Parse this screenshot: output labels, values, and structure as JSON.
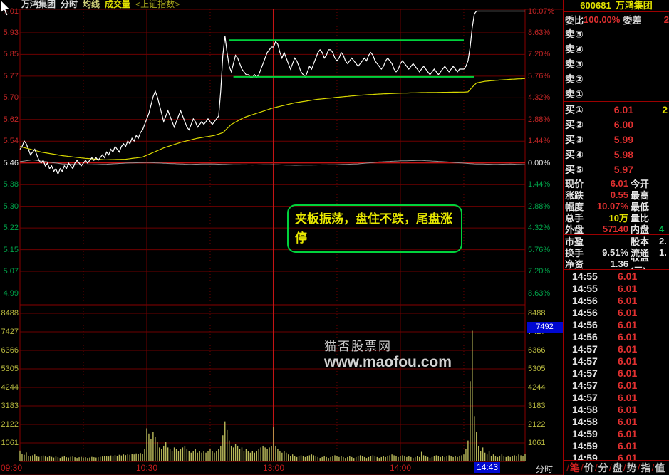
{
  "header": {
    "stock_name": "万鸿集团",
    "view_label": "分时",
    "ma_label": "均线",
    "vol_label": "成交量",
    "index_ref": "<上证指数>"
  },
  "watermark": {
    "line1": "猫否股票网",
    "line2": "www.maofou.com"
  },
  "annotation_text": "夹板振荡，盘住不跌，尾盘涨停",
  "cursor_readout": {
    "volume": "7492",
    "time": "14:43"
  },
  "axis_mode_label": "分时",
  "colors": {
    "up_red": "#e03030",
    "yellow": "#e0e000",
    "green_line": "#00d23c",
    "axis_red": "#c22525",
    "axis_green": "#00a44a",
    "grid_dark": "#6e0000",
    "grid_bright": "#c41414",
    "blue_highlight": "#0008d0",
    "price_line": "#ffffff",
    "avg_line": "#d8d800",
    "index_line": "#909090",
    "vol_bar": "#b9b95a"
  },
  "panel": {
    "code": "600681",
    "name": "万鸿集团",
    "weibi_label": "委比",
    "weibi_value": "100.00%",
    "weicha_label": "委差",
    "weicha_value": "2",
    "sell_levels": [
      {
        "label": "卖⑤",
        "price": "",
        "vol": ""
      },
      {
        "label": "卖④",
        "price": "",
        "vol": ""
      },
      {
        "label": "卖③",
        "price": "",
        "vol": ""
      },
      {
        "label": "卖②",
        "price": "",
        "vol": ""
      },
      {
        "label": "卖①",
        "price": "",
        "vol": ""
      }
    ],
    "buy_levels": [
      {
        "label": "买①",
        "price": "6.01",
        "vol": "2"
      },
      {
        "label": "买②",
        "price": "6.00",
        "vol": ""
      },
      {
        "label": "买③",
        "price": "5.99",
        "vol": ""
      },
      {
        "label": "买④",
        "price": "5.98",
        "vol": ""
      },
      {
        "label": "买⑤",
        "price": "5.97",
        "vol": ""
      }
    ],
    "info_rows": [
      {
        "l1": "现价",
        "v1": "6.01",
        "c1": "c-red",
        "l2": "今开",
        "v2": "",
        "c2": "c-white"
      },
      {
        "l1": "涨跌",
        "v1": "0.55",
        "c1": "c-red",
        "l2": "最高",
        "v2": "",
        "c2": "c-white"
      },
      {
        "l1": "幅度",
        "v1": "10.07%",
        "c1": "c-red",
        "l2": "最低",
        "v2": "",
        "c2": "c-white"
      },
      {
        "l1": "总手",
        "v1": "10万",
        "c1": "c-yellow",
        "l2": "量比",
        "v2": "",
        "c2": "c-white"
      },
      {
        "l1": "外盘",
        "v1": "57140",
        "c1": "c-red",
        "l2": "内盘",
        "v2": "4",
        "c2": "c-green"
      }
    ],
    "info_rows2": [
      {
        "l1": "市盈",
        "v1": "",
        "c1": "c-white",
        "l2": "股本",
        "v2": "2.",
        "c2": "c-white"
      },
      {
        "l1": "换手",
        "v1": "9.51%",
        "c1": "c-white",
        "l2": "流通",
        "v2": "1.",
        "c2": "c-white"
      },
      {
        "l1": "净资",
        "v1": "1.36",
        "c1": "c-white",
        "l2": "收益(三)",
        "v2": "",
        "c2": "c-white"
      }
    ],
    "ticks": [
      {
        "time": "14:55",
        "price": "6.01"
      },
      {
        "time": "14:55",
        "price": "6.01"
      },
      {
        "time": "14:56",
        "price": "6.01"
      },
      {
        "time": "14:56",
        "price": "6.01"
      },
      {
        "time": "14:56",
        "price": "6.01"
      },
      {
        "time": "14:56",
        "price": "6.01"
      },
      {
        "time": "14:57",
        "price": "6.01"
      },
      {
        "time": "14:57",
        "price": "6.01"
      },
      {
        "time": "14:57",
        "price": "6.01"
      },
      {
        "time": "14:57",
        "price": "6.01"
      },
      {
        "time": "14:57",
        "price": "6.01"
      },
      {
        "time": "14:58",
        "price": "6.01"
      },
      {
        "time": "14:58",
        "price": "6.01"
      },
      {
        "time": "14:59",
        "price": "6.01"
      },
      {
        "time": "14:59",
        "price": "6.01"
      },
      {
        "time": "14:59",
        "price": "6.01"
      }
    ],
    "tabs": [
      "笔",
      "价",
      "分",
      "盘",
      "势",
      "指",
      "值"
    ],
    "active_tab": "笔"
  },
  "chart_data": {
    "type": "line",
    "title": "万鸿集团(600681) 分时走势",
    "prev_close": 5.46,
    "limit_up": 6.01,
    "price_axis": [
      "6.01",
      "5.93",
      "5.85",
      "5.77",
      "5.70",
      "5.62",
      "5.54",
      "5.46",
      "5.38",
      "5.30",
      "5.22",
      "5.15",
      "5.07",
      "4.99"
    ],
    "pct_axis": [
      "10.07%",
      "8.63%",
      "7.20%",
      "5.76%",
      "4.32%",
      "2.88%",
      "1.44%",
      "0.00%",
      "1.44%",
      "2.88%",
      "4.32%",
      "5.76%",
      "7.20%",
      "8.63%"
    ],
    "vol_axis": [
      "8488",
      "7427",
      "6366",
      "5305",
      "4244",
      "3183",
      "2122",
      "1061"
    ],
    "time_labels": [
      {
        "t": "09:30",
        "min": 0,
        "align": "left"
      },
      {
        "t": "10:30",
        "min": 60,
        "align": "center"
      },
      {
        "t": "13:00",
        "min": 120,
        "align": "center"
      },
      {
        "t": "14:00",
        "min": 180,
        "align": "center"
      }
    ],
    "grid": {
      "dotted_min": [
        30,
        90,
        150,
        210
      ],
      "solid_min": [
        60,
        180
      ],
      "session_min": 120
    },
    "series": [
      {
        "name": "price",
        "values": [
          5.51,
          5.52,
          5.54,
          5.53,
          5.51,
          5.49,
          5.5,
          5.51,
          5.49,
          5.47,
          5.46,
          5.47,
          5.45,
          5.46,
          5.44,
          5.45,
          5.43,
          5.44,
          5.42,
          5.44,
          5.43,
          5.45,
          5.44,
          5.46,
          5.45,
          5.44,
          5.46,
          5.47,
          5.46,
          5.45,
          5.46,
          5.47,
          5.46,
          5.47,
          5.48,
          5.47,
          5.48,
          5.47,
          5.48,
          5.49,
          5.48,
          5.5,
          5.49,
          5.51,
          5.5,
          5.52,
          5.51,
          5.5,
          5.52,
          5.53,
          5.52,
          5.54,
          5.53,
          5.55,
          5.54,
          5.56,
          5.55,
          5.57,
          5.58,
          5.6,
          5.62,
          5.64,
          5.67,
          5.7,
          5.72,
          5.7,
          5.67,
          5.64,
          5.61,
          5.63,
          5.65,
          5.63,
          5.61,
          5.59,
          5.61,
          5.63,
          5.65,
          5.63,
          5.61,
          5.59,
          5.58,
          5.6,
          5.62,
          5.61,
          5.59,
          5.6,
          5.61,
          5.6,
          5.61,
          5.62,
          5.61,
          5.6,
          5.61,
          5.62,
          5.63,
          5.72,
          5.85,
          5.92,
          5.86,
          5.81,
          5.79,
          5.82,
          5.85,
          5.84,
          5.82,
          5.8,
          5.79,
          5.78,
          5.78,
          5.77,
          5.77,
          5.78,
          5.77,
          5.78,
          5.8,
          5.82,
          5.84,
          5.86,
          5.87,
          5.88,
          5.88,
          5.9,
          5.89,
          5.86,
          5.84,
          5.86,
          5.84,
          5.82,
          5.8,
          5.82,
          5.84,
          5.83,
          5.81,
          5.79,
          5.78,
          5.77,
          5.79,
          5.81,
          5.8,
          5.82,
          5.84,
          5.86,
          5.87,
          5.86,
          5.84,
          5.85,
          5.87,
          5.87,
          5.86,
          5.84,
          5.83,
          5.84,
          5.86,
          5.85,
          5.83,
          5.82,
          5.83,
          5.84,
          5.83,
          5.82,
          5.81,
          5.82,
          5.83,
          5.84,
          5.83,
          5.85,
          5.86,
          5.85,
          5.83,
          5.82,
          5.81,
          5.8,
          5.81,
          5.83,
          5.84,
          5.83,
          5.82,
          5.8,
          5.79,
          5.8,
          5.82,
          5.83,
          5.82,
          5.81,
          5.8,
          5.81,
          5.82,
          5.81,
          5.8,
          5.79,
          5.8,
          5.81,
          5.8,
          5.79,
          5.78,
          5.79,
          5.8,
          5.79,
          5.78,
          5.79,
          5.8,
          5.81,
          5.8,
          5.79,
          5.8,
          5.81,
          5.8,
          5.79,
          5.8,
          5.8,
          5.8,
          5.81,
          5.83,
          5.88,
          5.95,
          6.0,
          6.01,
          6.01,
          6.01,
          6.01,
          6.01,
          6.01,
          6.01,
          6.01,
          6.01,
          6.01,
          6.01,
          6.01,
          6.01,
          6.01,
          6.01,
          6.01,
          6.01,
          6.01,
          6.01,
          6.01,
          6.01,
          6.01,
          6.01,
          6.01
        ]
      },
      {
        "name": "average",
        "control_points": [
          [
            0,
            5.52
          ],
          [
            10,
            5.5
          ],
          [
            20,
            5.487
          ],
          [
            30,
            5.478
          ],
          [
            40,
            5.472
          ],
          [
            50,
            5.474
          ],
          [
            58,
            5.482
          ],
          [
            62,
            5.495
          ],
          [
            68,
            5.515
          ],
          [
            76,
            5.535
          ],
          [
            84,
            5.55
          ],
          [
            92,
            5.56
          ],
          [
            96,
            5.57
          ],
          [
            100,
            5.6
          ],
          [
            106,
            5.625
          ],
          [
            112,
            5.64
          ],
          [
            119,
            5.658
          ],
          [
            120,
            5.66
          ],
          [
            130,
            5.678
          ],
          [
            140,
            5.69
          ],
          [
            150,
            5.698
          ],
          [
            160,
            5.705
          ],
          [
            170,
            5.71
          ],
          [
            180,
            5.713
          ],
          [
            190,
            5.715
          ],
          [
            200,
            5.716
          ],
          [
            210,
            5.717
          ],
          [
            212,
            5.718
          ],
          [
            214,
            5.735
          ],
          [
            216,
            5.75
          ],
          [
            220,
            5.756
          ],
          [
            226,
            5.76
          ],
          [
            232,
            5.763
          ],
          [
            239,
            5.766
          ]
        ]
      },
      {
        "name": "index_pct",
        "control_points": [
          [
            0,
            0.1
          ],
          [
            6,
            0.22
          ],
          [
            12,
            0.1
          ],
          [
            20,
            -0.05
          ],
          [
            30,
            -0.12
          ],
          [
            40,
            -0.08
          ],
          [
            50,
            0.0
          ],
          [
            60,
            0.05
          ],
          [
            70,
            -0.02
          ],
          [
            80,
            -0.08
          ],
          [
            90,
            -0.05
          ],
          [
            100,
            -0.1
          ],
          [
            110,
            -0.12
          ],
          [
            119,
            -0.1
          ],
          [
            120,
            -0.1
          ],
          [
            130,
            -0.14
          ],
          [
            140,
            -0.12
          ],
          [
            150,
            -0.1
          ],
          [
            160,
            -0.05
          ],
          [
            170,
            0.08
          ],
          [
            180,
            0.15
          ],
          [
            190,
            0.18
          ],
          [
            200,
            0.1
          ],
          [
            210,
            0.0
          ],
          [
            215,
            -0.05
          ],
          [
            225,
            -0.08
          ],
          [
            232,
            -0.06
          ],
          [
            239,
            -0.1
          ]
        ]
      }
    ],
    "volume": [
      620,
      450,
      380,
      520,
      300,
      280,
      350,
      400,
      320,
      260,
      300,
      340,
      280,
      240,
      300,
      260,
      220,
      280,
      240,
      200,
      260,
      300,
      240,
      220,
      260,
      280,
      240,
      200,
      240,
      260,
      220,
      240,
      200,
      220,
      260,
      240,
      220,
      240,
      260,
      280,
      300,
      320,
      280,
      340,
      300,
      360,
      320,
      380,
      340,
      400,
      360,
      420,
      380,
      440,
      400,
      460,
      420,
      480,
      440,
      700,
      1900,
      1600,
      1300,
      1700,
      1400,
      1100,
      800,
      700,
      900,
      1100,
      800,
      700,
      600,
      800,
      700,
      600,
      700,
      800,
      900,
      700,
      600,
      500,
      600,
      700,
      500,
      600,
      500,
      600,
      500,
      600,
      700,
      600,
      500,
      600,
      700,
      900,
      1500,
      2300,
      1800,
      1200,
      900,
      800,
      1000,
      900,
      700,
      800,
      600,
      700,
      600,
      500,
      600,
      500,
      600,
      700,
      800,
      900,
      800,
      700,
      800,
      900,
      2000,
      900,
      700,
      600,
      500,
      600,
      500,
      400,
      300,
      400,
      300,
      250,
      300,
      350,
      300,
      250,
      300,
      350,
      400,
      350,
      300,
      250,
      200,
      250,
      300,
      250,
      200,
      250,
      300,
      350,
      300,
      250,
      300,
      250,
      200,
      250,
      300,
      250,
      200,
      250,
      300,
      350,
      300,
      250,
      200,
      250,
      300,
      350,
      300,
      250,
      200,
      250,
      300,
      250,
      300,
      350,
      400,
      350,
      300,
      250,
      300,
      350,
      300,
      250,
      300,
      250,
      200,
      250,
      300,
      250,
      550,
      350,
      300,
      250,
      200,
      250,
      300,
      350,
      300,
      250,
      300,
      250,
      300,
      350,
      300,
      250,
      300,
      250,
      300,
      350,
      400,
      700,
      1200,
      4600,
      7492,
      2600,
      1700,
      900,
      600,
      800,
      500,
      400,
      600,
      300,
      400,
      300,
      250,
      300,
      400,
      300,
      250,
      300,
      250,
      300,
      350,
      300,
      400,
      350,
      300,
      450
    ],
    "green_lines": [
      {
        "price": 5.905,
        "from_min": 99,
        "to_min": 210
      },
      {
        "price": 5.772,
        "from_min": 101,
        "to_min": 215
      }
    ],
    "legend_position": "none",
    "grid_on": true
  }
}
